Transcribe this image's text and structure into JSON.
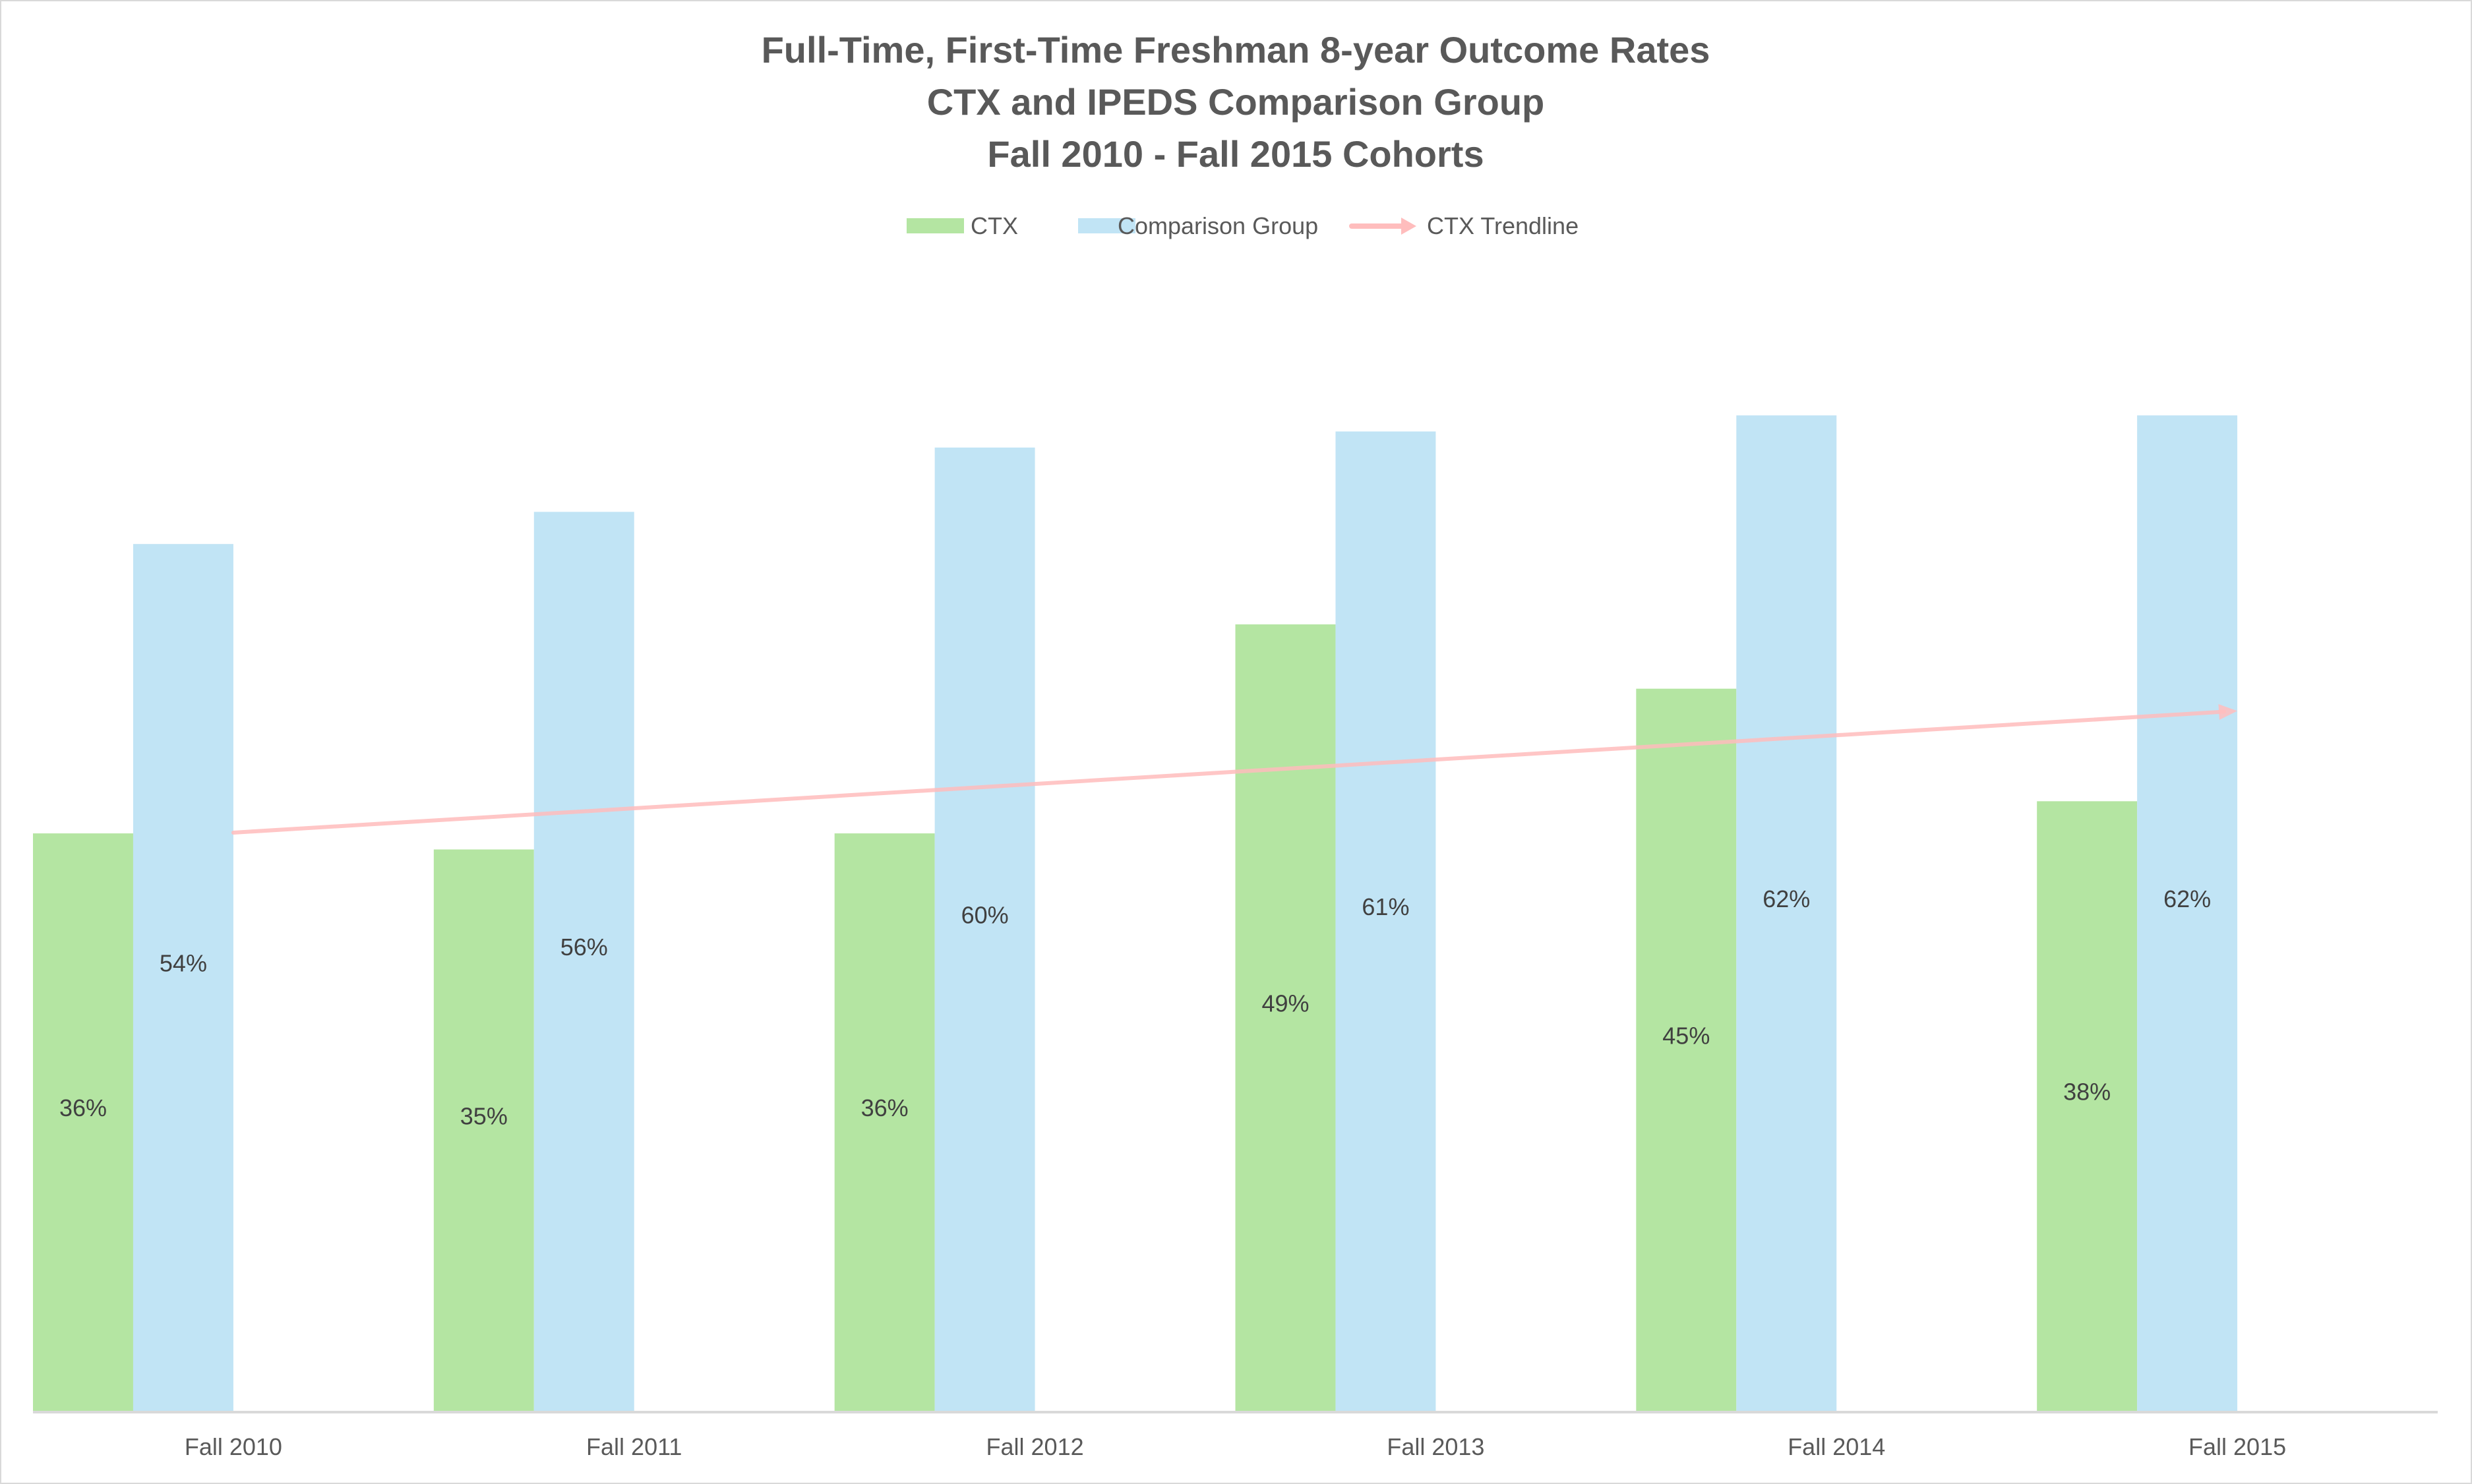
{
  "chart_data": {
    "type": "bar",
    "title": [
      "Full-Time, First-Time Freshman 8-year Outcome Rates",
      "CTX and IPEDS Comparison Group",
      "Fall 2010 - Fall 2015 Cohorts"
    ],
    "categories": [
      "Fall 2010",
      "Fall 2011",
      "Fall 2012",
      "Fall 2013",
      "Fall 2014",
      "Fall 2015"
    ],
    "series": [
      {
        "name": "CTX",
        "values": [
          0.36,
          0.35,
          0.36,
          0.49,
          0.45,
          0.38
        ],
        "labels": [
          "36%",
          "35%",
          "36%",
          "49%",
          "45%",
          "38%"
        ],
        "color": "#b4e5a2"
      },
      {
        "name": "Comparison Group",
        "values": [
          0.54,
          0.56,
          0.6,
          0.61,
          0.62,
          0.62
        ],
        "labels": [
          "54%",
          "56%",
          "60%",
          "61%",
          "62%",
          "62%"
        ],
        "color": "#c1e4f5"
      }
    ],
    "trendline": {
      "name": "CTX Trendline",
      "of_series": "CTX",
      "type": "linear",
      "color": "#ffbdbd"
    },
    "xlabel": "",
    "ylabel": "",
    "ylim": [
      0,
      0.7
    ],
    "grid": false,
    "y_axis_visible": false,
    "legend": "top"
  }
}
